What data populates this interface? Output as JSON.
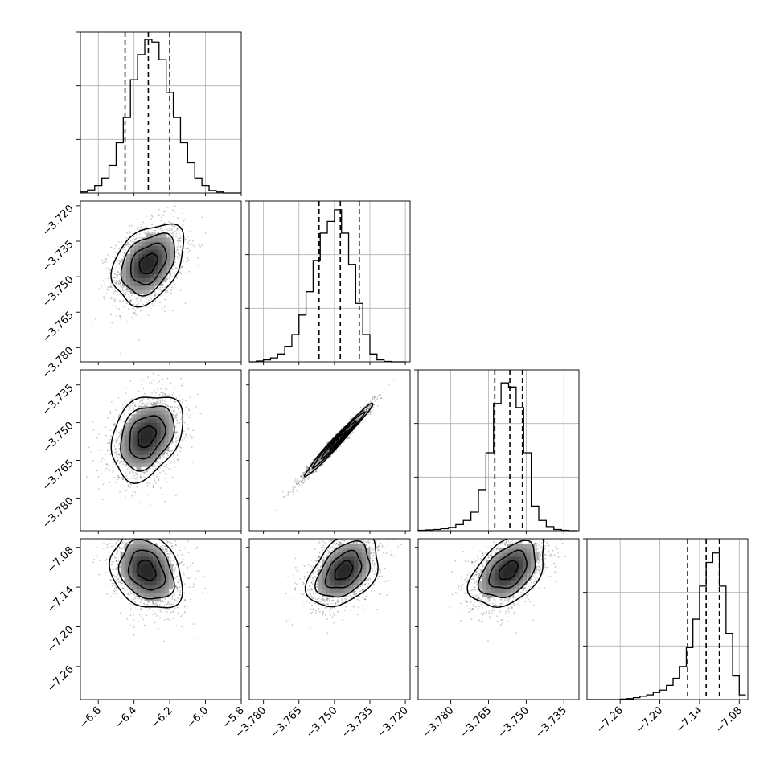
{
  "chart_data": {
    "type": "corner",
    "grid": true,
    "parameters": [
      {
        "range": [
          -6.7,
          -5.8
        ],
        "ticks": [
          -6.6,
          -6.4,
          -6.2,
          -6.0,
          -5.8
        ],
        "tick_labels": [
          "−6.6",
          "−6.4",
          "−6.2",
          "−6.0",
          "−5.8"
        ],
        "quantiles": [
          -6.45,
          -6.32,
          -6.2
        ],
        "hist": {
          "edges": [
            -6.7,
            -6.66,
            -6.62,
            -6.58,
            -6.54,
            -6.5,
            -6.46,
            -6.42,
            -6.38,
            -6.34,
            -6.3,
            -6.26,
            -6.22,
            -6.18,
            -6.14,
            -6.1,
            -6.06,
            -6.02,
            -5.98,
            -5.94,
            -5.9,
            -5.86,
            -5.82,
            -5.78
          ],
          "counts": [
            2,
            6,
            15,
            30,
            55,
            100,
            150,
            225,
            275,
            305,
            300,
            265,
            200,
            150,
            100,
            60,
            30,
            15,
            5,
            2,
            0,
            0,
            0
          ],
          "ymax": 310
        }
      },
      {
        "range": [
          -3.786,
          -3.718
        ],
        "ticks": [
          -3.78,
          -3.765,
          -3.75,
          -3.735,
          -3.72
        ],
        "tick_labels": [
          "−3.780",
          "−3.765",
          "−3.750",
          "−3.735",
          "−3.720"
        ],
        "quantiles": [
          -3.7565,
          -3.7475,
          -3.7395
        ],
        "hist": {
          "edges": [
            -3.786,
            -3.783,
            -3.78,
            -3.777,
            -3.774,
            -3.771,
            -3.768,
            -3.765,
            -3.762,
            -3.759,
            -3.756,
            -3.753,
            -3.75,
            -3.747,
            -3.744,
            -3.741,
            -3.738,
            -3.735,
            -3.732,
            -3.729,
            -3.726,
            -3.723,
            -3.72
          ],
          "counts": [
            0,
            2,
            5,
            10,
            20,
            40,
            70,
            120,
            180,
            260,
            330,
            360,
            390,
            330,
            250,
            150,
            70,
            20,
            5,
            1,
            0,
            0
          ],
          "ymax": 400
        }
      },
      {
        "range": [
          -3.793,
          -3.729
        ],
        "ticks": [
          -3.78,
          -3.765,
          -3.75,
          -3.735
        ],
        "tick_labels": [
          "−3.780",
          "−3.765",
          "−3.750",
          "−3.735"
        ],
        "quantiles": [
          -3.7625,
          -3.7565,
          -3.7515
        ],
        "hist": {
          "edges": [
            -3.793,
            -3.79,
            -3.787,
            -3.784,
            -3.781,
            -3.778,
            -3.775,
            -3.772,
            -3.769,
            -3.766,
            -3.763,
            -3.76,
            -3.757,
            -3.754,
            -3.751,
            -3.748,
            -3.745,
            -3.742,
            -3.739,
            -3.736,
            -3.733,
            -3.73
          ],
          "counts": [
            1,
            2,
            3,
            5,
            8,
            15,
            25,
            45,
            100,
            190,
            310,
            360,
            350,
            300,
            190,
            60,
            25,
            10,
            3,
            1,
            0
          ],
          "ymax": 380
        }
      },
      {
        "range": [
          -7.31,
          -7.067
        ],
        "ticks": [
          -7.26,
          -7.2,
          -7.14,
          -7.08
        ],
        "tick_labels": [
          "−7.26",
          "−7.20",
          "−7.14",
          "−7.08"
        ],
        "quantiles": [
          -7.158,
          -7.13,
          -7.11
        ],
        "hist": {
          "edges": [
            -7.31,
            -7.3,
            -7.29,
            -7.28,
            -7.27,
            -7.26,
            -7.25,
            -7.24,
            -7.23,
            -7.22,
            -7.21,
            -7.2,
            -7.19,
            -7.18,
            -7.17,
            -7.16,
            -7.15,
            -7.14,
            -7.13,
            -7.12,
            -7.11,
            -7.1,
            -7.09,
            -7.08,
            -7.07
          ],
          "counts": [
            0,
            0,
            0,
            0,
            0,
            1,
            2,
            4,
            7,
            10,
            15,
            20,
            30,
            45,
            70,
            110,
            170,
            240,
            290,
            310,
            240,
            140,
            50,
            10
          ],
          "ymax": 330
        }
      }
    ],
    "pairs": [
      {
        "x": 0,
        "y": 1,
        "center": [
          -6.32,
          -3.7445
        ],
        "sd": [
          0.1,
          0.0085
        ],
        "rho": 0.35
      },
      {
        "x": 0,
        "y": 2,
        "center": [
          -6.33,
          -3.7555
        ],
        "sd": [
          0.1,
          0.0085
        ],
        "rho": 0.3
      },
      {
        "x": 1,
        "y": 2,
        "center": [
          -3.7485,
          -3.757
        ],
        "sd": [
          0.0072,
          0.0073
        ],
        "rho": 0.985
      },
      {
        "x": 0,
        "y": 3,
        "center": [
          -6.33,
          -7.115
        ],
        "sd": [
          0.1,
          0.03
        ],
        "rho": -0.25
      },
      {
        "x": 1,
        "y": 3,
        "center": [
          -3.746,
          -7.115
        ],
        "sd": [
          0.0075,
          0.028
        ],
        "rho": 0.4
      },
      {
        "x": 2,
        "y": 3,
        "center": [
          -3.757,
          -7.115
        ],
        "sd": [
          0.0075,
          0.028
        ],
        "rho": 0.45
      }
    ],
    "contour_levels_sigma": [
      0.5,
      1.0,
      1.5,
      2.0
    ]
  }
}
